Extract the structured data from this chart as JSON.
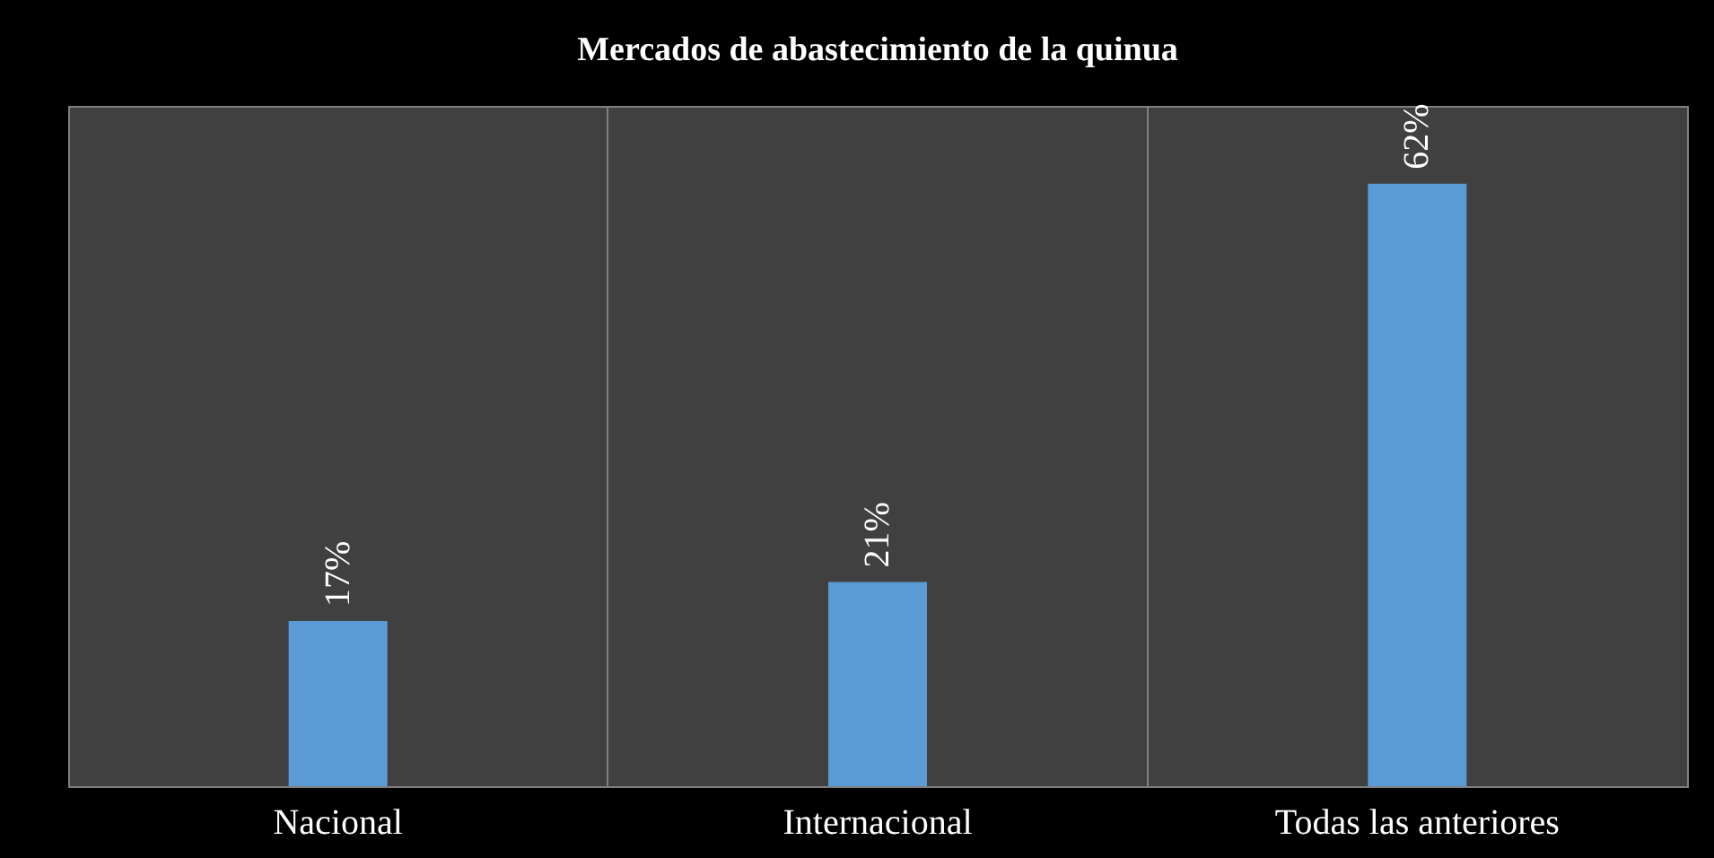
{
  "chart_data": {
    "type": "bar",
    "title": "Mercados de abastecimiento de la quinua",
    "categories": [
      "Nacional",
      "Internacional",
      "Todas las anteriores"
    ],
    "values": [
      17,
      21,
      62
    ],
    "value_labels": [
      "17%",
      "21%",
      "62%"
    ],
    "color": "#5b9bd5",
    "ylim": [
      0,
      70
    ],
    "grid": "x",
    "tick_labels": "x"
  }
}
